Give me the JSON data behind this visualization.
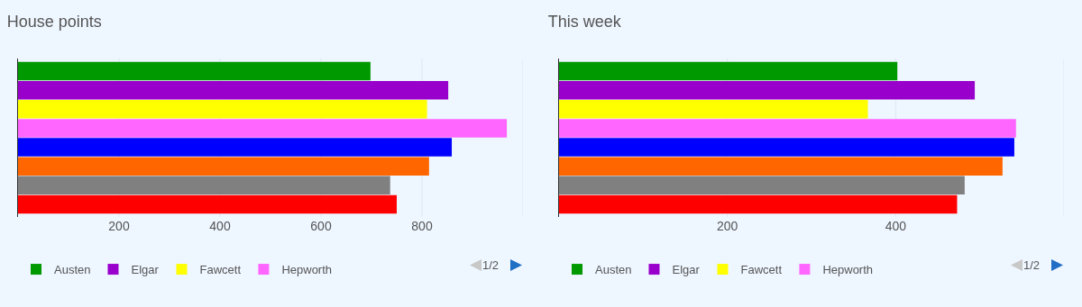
{
  "chart_data": [
    {
      "type": "bar",
      "title": "House points",
      "orientation": "horizontal",
      "categories": [
        null
      ],
      "xlim": [
        0,
        1000
      ],
      "xticks": [
        200,
        400,
        600,
        800,
        {
          "value": 1000,
          "label": null
        }
      ],
      "grid": "x",
      "legend": "bottom",
      "annotations": [
        "1/2"
      ],
      "series": [
        {
          "name": "Austen",
          "color": "#009900",
          "values": [
            698
          ]
        },
        {
          "name": "Elgar",
          "color": "#9900cc",
          "values": [
            852
          ]
        },
        {
          "name": "Fawcett",
          "color": "#ffff00",
          "values": [
            810
          ]
        },
        {
          "name": "Hepworth",
          "color": "#ff66ff",
          "values": [
            968
          ]
        },
        {
          "color": "#0000ff",
          "values": [
            859
          ]
        },
        {
          "color": "#ff6600",
          "values": [
            814
          ]
        },
        {
          "color": "#808080",
          "values": [
            737
          ]
        },
        {
          "color": "#ff0000",
          "values": [
            750
          ]
        }
      ]
    },
    {
      "type": "bar",
      "title": "This week",
      "orientation": "horizontal",
      "categories": [
        null
      ],
      "xlim": [
        0,
        600
      ],
      "xticks": [
        200,
        400,
        {
          "value": 600,
          "label": null
        }
      ],
      "grid": "x",
      "legend": "bottom",
      "annotations": [
        "1/2"
      ],
      "series": [
        {
          "name": "Austen",
          "color": "#009900",
          "values": [
            402
          ]
        },
        {
          "name": "Elgar",
          "color": "#9900cc",
          "values": [
            494
          ]
        },
        {
          "name": "Fawcett",
          "color": "#ffff00",
          "values": [
            367
          ]
        },
        {
          "name": "Hepworth",
          "color": "#ff66ff",
          "values": [
            543
          ]
        },
        {
          "color": "#0000ff",
          "values": [
            541
          ]
        },
        {
          "color": "#ff6600",
          "values": [
            527
          ]
        },
        {
          "color": "#808080",
          "values": [
            482
          ]
        },
        {
          "color": "#ff0000",
          "values": [
            473
          ]
        }
      ]
    }
  ]
}
